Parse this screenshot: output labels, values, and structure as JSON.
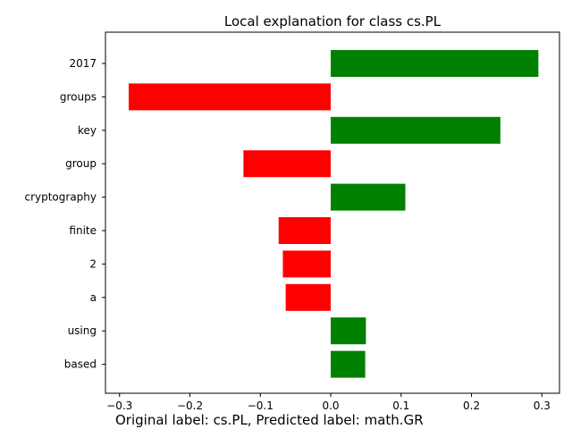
{
  "chart_data": {
    "type": "bar",
    "orientation": "horizontal",
    "title": "Local explanation for class cs.PL",
    "xlabel": "",
    "ylabel": "",
    "categories": [
      "2017",
      "groups",
      "key",
      "group",
      "cryptography",
      "finite",
      "2",
      "a",
      "using",
      "based"
    ],
    "values": [
      0.295,
      -0.287,
      0.241,
      -0.124,
      0.106,
      -0.074,
      -0.068,
      -0.064,
      0.05,
      0.049
    ],
    "xlim": [
      -0.32,
      0.325
    ],
    "xticks": [
      -0.3,
      -0.2,
      -0.1,
      0.0,
      0.1,
      0.2,
      0.3
    ],
    "xtick_labels": [
      "−0.3",
      "−0.2",
      "−0.1",
      "0.0",
      "0.1",
      "0.2",
      "0.3"
    ],
    "positive_color": "#008000",
    "negative_color": "#ff0000",
    "grid": false,
    "footer": "Original label: cs.PL, Predicted label: math.GR"
  }
}
